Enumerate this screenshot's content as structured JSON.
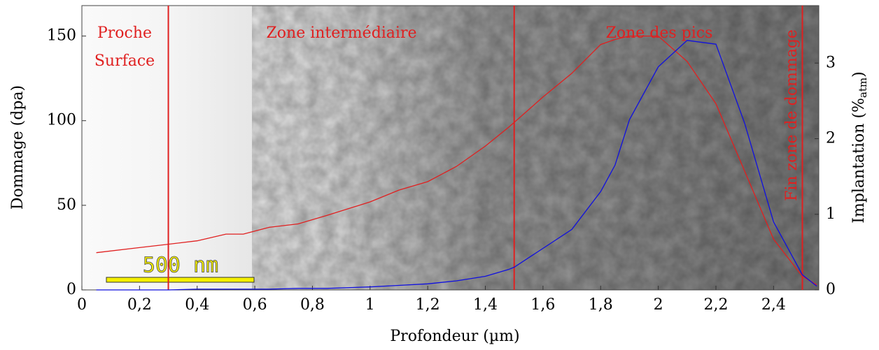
{
  "chart_data": {
    "type": "line",
    "x_label": "Profondeur (µm)",
    "y_label": "Dommage (dpa)",
    "y2_label": [
      "Implantation (%",
      "atm",
      ")"
    ],
    "x": [
      0.05,
      0.2,
      0.3,
      0.4,
      0.5,
      0.56,
      0.65,
      0.75,
      0.85,
      1.0,
      1.1,
      1.2,
      1.3,
      1.4,
      1.48,
      1.5,
      1.6,
      1.7,
      1.8,
      1.85,
      1.9,
      2.0,
      2.1,
      2.2,
      2.3,
      2.4,
      2.5,
      2.55
    ],
    "series": [
      {
        "color": "#e02020",
        "axis": "y",
        "values": [
          22,
          25,
          27,
          29,
          33,
          33,
          37,
          39,
          44,
          52,
          59,
          64,
          73,
          85,
          96,
          99,
          114,
          128,
          145,
          148,
          150,
          150,
          135,
          110,
          70,
          30,
          8,
          3
        ]
      },
      {
        "color": "#1010e0",
        "axis": "y2",
        "values": [
          0,
          0,
          0,
          0.01,
          0.01,
          0.01,
          0.01,
          0.02,
          0.02,
          0.04,
          0.06,
          0.08,
          0.12,
          0.18,
          0.27,
          0.3,
          0.55,
          0.8,
          1.3,
          1.65,
          2.25,
          2.95,
          3.3,
          3.25,
          2.2,
          0.9,
          0.2,
          0.05
        ]
      }
    ],
    "xlim": [
      0,
      2.557
    ],
    "ylim": [
      0,
      168
    ],
    "y2lim": [
      0,
      3.76
    ],
    "xticks": [
      0,
      {
        "value": 0.2,
        "label": "0,2"
      },
      {
        "value": 0.4,
        "label": "0,4"
      },
      {
        "value": 0.6,
        "label": "0,6"
      },
      {
        "value": 0.8,
        "label": "0,8"
      },
      1,
      {
        "value": 1.2,
        "label": "1,2"
      },
      {
        "value": 1.4,
        "label": "1,4"
      },
      {
        "value": 1.6,
        "label": "1,6"
      },
      {
        "value": 1.8,
        "label": "1,8"
      },
      2,
      {
        "value": 2.2,
        "label": "2,2"
      },
      {
        "value": 2.4,
        "label": "2,4"
      }
    ],
    "yticks": [
      0,
      50,
      100,
      150
    ],
    "y2ticks": [
      0,
      1,
      2,
      3
    ],
    "vlines": {
      "color": "#e02020",
      "values": [
        0.3,
        1.5,
        2.5
      ]
    },
    "annotations": [
      "Proche",
      "Surface",
      "Zone intermédiaire",
      "Zone des pics",
      "Fin zone de dommage"
    ],
    "scale_bar": "500 nm"
  }
}
